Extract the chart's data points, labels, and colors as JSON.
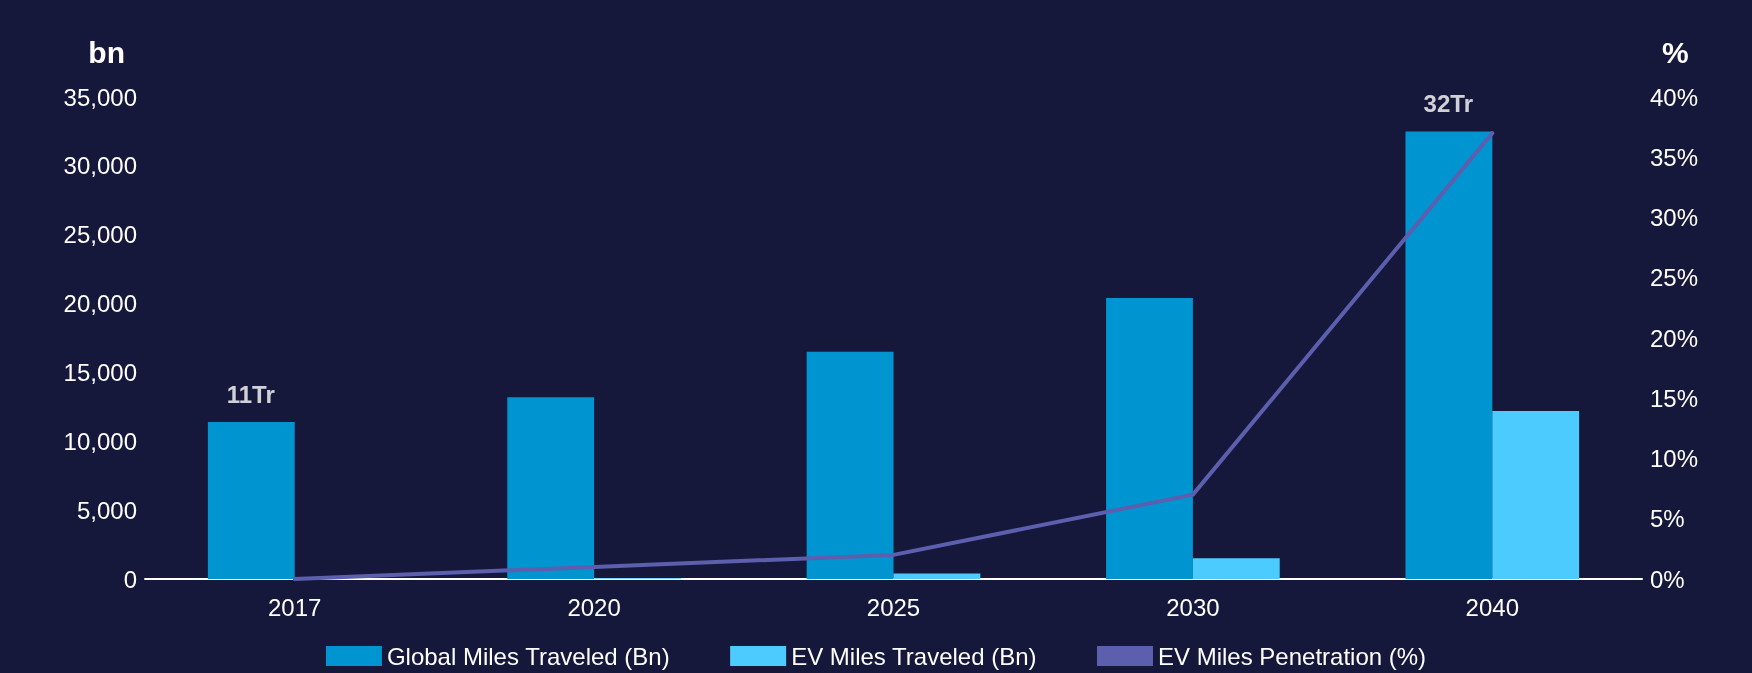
{
  "chart_data": {
    "type": "bar",
    "ylabel": "bn",
    "y2label": "%",
    "categories": [
      "2017",
      "2020",
      "2025",
      "2030",
      "2040"
    ],
    "series": [
      {
        "name": "Global Miles Traveled (Bn)",
        "color": "#0095d0",
        "values": [
          11400,
          13200,
          16500,
          20400,
          32500
        ]
      },
      {
        "name": "EV Miles Traveled (Bn)",
        "color": "#4ccbff",
        "values": [
          0,
          50,
          400,
          1500,
          12200
        ]
      },
      {
        "name": "EV Miles Penetration (%)",
        "type": "line",
        "axis": "y2",
        "color": "#5b5fae",
        "values": [
          0,
          1,
          2,
          7,
          37
        ]
      }
    ],
    "ylim": [
      0,
      35000
    ],
    "yticks": [
      {
        "value": 0,
        "label": "0"
      },
      {
        "value": 5000,
        "label": "5,000"
      },
      {
        "value": 10000,
        "label": "10,000"
      },
      {
        "value": 15000,
        "label": "15,000"
      },
      {
        "value": 20000,
        "label": "20,000"
      },
      {
        "value": 25000,
        "label": "25,000"
      },
      {
        "value": 30000,
        "label": "30,000"
      },
      {
        "value": 35000,
        "label": "35,000"
      }
    ],
    "y2lim": [
      0,
      40
    ],
    "y2ticks": [
      {
        "value": 0,
        "label": "0%"
      },
      {
        "value": 5,
        "label": "5%"
      },
      {
        "value": 10,
        "label": "10%"
      },
      {
        "value": 15,
        "label": "15%"
      },
      {
        "value": 20,
        "label": "20%"
      },
      {
        "value": 25,
        "label": "25%"
      },
      {
        "value": 30,
        "label": "30%"
      },
      {
        "value": 35,
        "label": "35%"
      },
      {
        "value": 40,
        "label": "40%"
      }
    ],
    "annotations": [
      {
        "text": "11Tr",
        "x": "2017",
        "y": 11400
      },
      {
        "text": "32Tr",
        "x": "2040",
        "y": 32500
      }
    ],
    "legend": "bottom",
    "grid": false,
    "marker": "none",
    "line_style": "solid"
  }
}
